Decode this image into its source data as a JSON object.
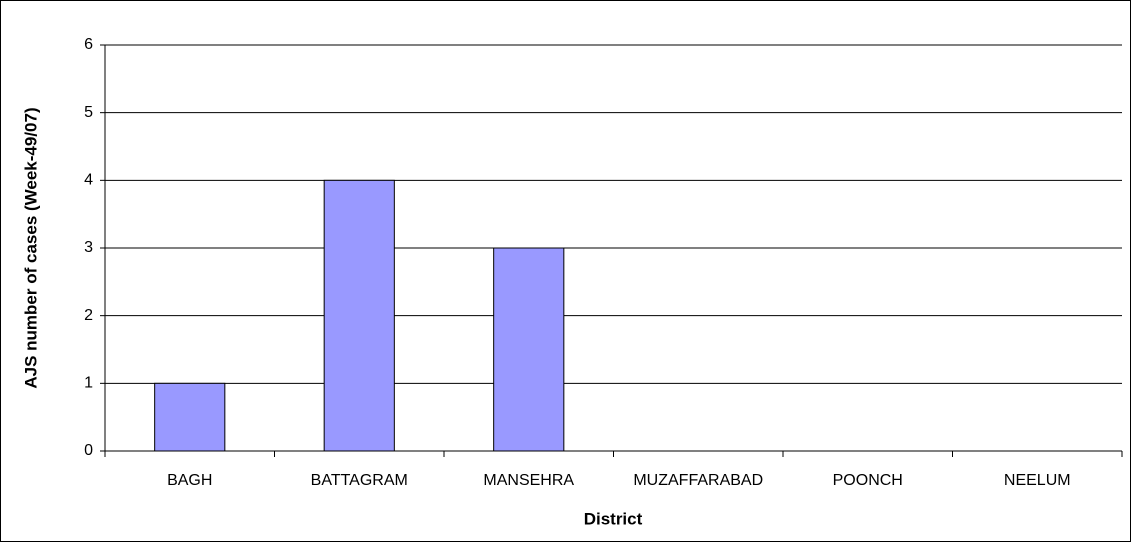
{
  "chart_data": {
    "type": "bar",
    "xlabel": "District",
    "ylabel": "AJS number of cases (Week-49/07)",
    "categories": [
      "BAGH",
      "BATTAGRAM",
      "MANSEHRA",
      "MUZAFFARABAD",
      "POONCH",
      "NEELUM"
    ],
    "values": [
      1,
      4,
      3,
      0,
      0,
      0
    ],
    "color": "#9999ff",
    "ylim": [
      0,
      6
    ],
    "yticks": [
      0,
      1,
      2,
      3,
      4,
      5,
      6
    ],
    "grid": true
  }
}
